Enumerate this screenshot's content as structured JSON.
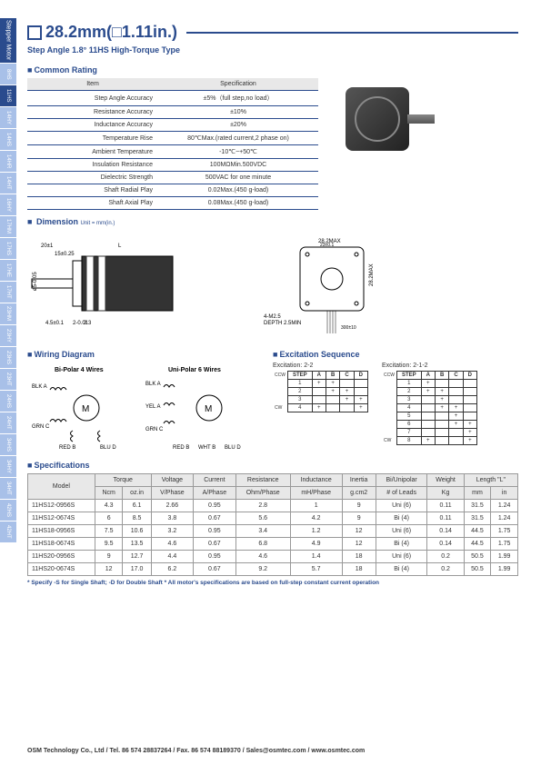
{
  "title": "28.2mm(□1.11in.)",
  "subtitle": "Step Angle 1.8°   11HS High-Torque Type",
  "side_tabs": {
    "top": "Stepper Motor",
    "items": [
      "8HS",
      "11HS",
      "14HY",
      "14HS",
      "14HR",
      "14HT",
      "16HY",
      "17HM",
      "17HS",
      "17HE",
      "17HT",
      "23HM",
      "23HY",
      "23HS",
      "23HT",
      "24HS",
      "24HT",
      "34HS",
      "34HY",
      "34HT",
      "42HS",
      "42HT"
    ]
  },
  "sections": {
    "common_rating": "Common Rating",
    "dimension": "Dimension",
    "dimension_unit": "Unit = mm(in.)",
    "wiring": "Wiring Diagram",
    "excitation": "Excitation Sequence",
    "specifications": "Specifications"
  },
  "rating": {
    "header_item": "Item",
    "header_spec": "Specification",
    "rows": [
      {
        "item": "Step Angle Accuracy",
        "spec": "±5%（full step,no load）"
      },
      {
        "item": "Resistance Accuracy",
        "spec": "±10%"
      },
      {
        "item": "Inductance Accuracy",
        "spec": "±20%"
      },
      {
        "item": "Temperature Rise",
        "spec": "80℃Max.(rated current,2 phase on)"
      },
      {
        "item": "Ambient Temperature",
        "spec": "-10℃~+50℃"
      },
      {
        "item": "Insulation Resistance",
        "spec": "100MΩMin.500VDC"
      },
      {
        "item": "Dielectric Strength",
        "spec": "500VAC for one minute"
      },
      {
        "item": "Shaft Radial Play",
        "spec": "0.02Max.(450 g-load)"
      },
      {
        "item": "Shaft Axial Play",
        "spec": "0.08Max.(450 g-load)"
      }
    ]
  },
  "dimensions": {
    "side": {
      "shaft_len": "20±1",
      "shaft_step": "15±0.25",
      "shaft_dia": "ø5-0.05",
      "body_len": "L",
      "mount_hole": "4.5±0.1",
      "flange": "2-0.013",
      "step": "2"
    },
    "front": {
      "width": "28.2MAX",
      "mount_pitch": "23±0.1",
      "height": "28.2MAX",
      "center_pitch": "23±0.1",
      "hole": "4-M2.5",
      "depth": "DEPTH 2.5MIN",
      "lead": "300±10"
    }
  },
  "wiring": {
    "bipolar_title": "Bi-Polar 4 Wires",
    "unipolar_title": "Uni-Polar 6 Wires",
    "labels": {
      "blk_a": "BLK A",
      "grn_c": "GRN C",
      "red_b": "RED B",
      "blu_d": "BLU D",
      "yel_a": "YEL A",
      "wht_b": "WHT B",
      "m": "M"
    }
  },
  "excitation": {
    "t1_title": "Excitation: 2-2",
    "t2_title": "Excitation: 2-1-2",
    "headers": [
      "STEP",
      "A",
      "B",
      "C",
      "D"
    ],
    "t1_rows": [
      [
        "1",
        "+",
        "+",
        "",
        ""
      ],
      [
        "2",
        "",
        "+",
        "+",
        ""
      ],
      [
        "3",
        "",
        "",
        "+",
        "+"
      ],
      [
        "4",
        "+",
        "",
        "",
        "+"
      ]
    ],
    "t2_rows": [
      [
        "1",
        "+",
        "",
        "",
        ""
      ],
      [
        "2",
        "+",
        "+",
        "",
        ""
      ],
      [
        "3",
        "",
        "+",
        "",
        ""
      ],
      [
        "4",
        "",
        "+",
        "+",
        ""
      ],
      [
        "5",
        "",
        "",
        "+",
        ""
      ],
      [
        "6",
        "",
        "",
        "+",
        "+"
      ],
      [
        "7",
        "",
        "",
        "",
        "+"
      ],
      [
        "8",
        "+",
        "",
        "",
        "+"
      ]
    ],
    "ccw": "CCW",
    "cw": "CW"
  },
  "specs": {
    "headers": {
      "model": "Model",
      "torque": "Torque",
      "voltage": "Voltage",
      "current": "Current",
      "resistance": "Resistance",
      "inductance": "Inductance",
      "inertia": "Inertia",
      "biuni": "Bi/Unipolar",
      "weight": "Weight",
      "length": "Length \"L\""
    },
    "subheaders": {
      "ncm": "Ncm",
      "ozin": "oz.in",
      "vphase": "V/Phase",
      "aphase": "A/Phase",
      "ohm": "Ohm/Phase",
      "mh": "mH/Phase",
      "gcm2": "g.cm2",
      "leads": "# of Leads",
      "kg": "Kg",
      "mm": "mm",
      "in": "in"
    },
    "rows": [
      {
        "model": "11HS12-0956S",
        "ncm": "4.3",
        "ozin": "6.1",
        "v": "2.66",
        "a": "0.95",
        "r": "2.8",
        "l": "1",
        "inertia": "9",
        "bi": "Uni (6)",
        "w": "0.11",
        "mm": "31.5",
        "in": "1.24"
      },
      {
        "model": "11HS12-0674S",
        "ncm": "6",
        "ozin": "8.5",
        "v": "3.8",
        "a": "0.67",
        "r": "5.6",
        "l": "4.2",
        "inertia": "9",
        "bi": "Bi (4)",
        "w": "0.11",
        "mm": "31.5",
        "in": "1.24"
      },
      {
        "model": "11HS18-0956S",
        "ncm": "7.5",
        "ozin": "10.6",
        "v": "3.2",
        "a": "0.95",
        "r": "3.4",
        "l": "1.2",
        "inertia": "12",
        "bi": "Uni (6)",
        "w": "0.14",
        "mm": "44.5",
        "in": "1.75"
      },
      {
        "model": "11HS18-0674S",
        "ncm": "9.5",
        "ozin": "13.5",
        "v": "4.6",
        "a": "0.67",
        "r": "6.8",
        "l": "4.9",
        "inertia": "12",
        "bi": "Bi (4)",
        "w": "0.14",
        "mm": "44.5",
        "in": "1.75"
      },
      {
        "model": "11HS20-0956S",
        "ncm": "9",
        "ozin": "12.7",
        "v": "4.4",
        "a": "0.95",
        "r": "4.6",
        "l": "1.4",
        "inertia": "18",
        "bi": "Uni (6)",
        "w": "0.2",
        "mm": "50.5",
        "in": "1.99"
      },
      {
        "model": "11HS20-0674S",
        "ncm": "12",
        "ozin": "17.0",
        "v": "6.2",
        "a": "0.67",
        "r": "9.2",
        "l": "5.7",
        "inertia": "18",
        "bi": "Bi (4)",
        "w": "0.2",
        "mm": "50.5",
        "in": "1.99"
      }
    ]
  },
  "footnote": "* Specify -S for Single Shaft; -D for Double Shaft    * All motor's specifications are based on full-step constant current operation",
  "footer": "OSM Technology Co., Ltd / Tel. 86 574 28837264 / Fax. 86 574 88189370 / Sales@osmtec.com / www.osmtec.com",
  "colors": {
    "primary": "#2a4b8d",
    "header_bg": "#e8e8e8",
    "side_inactive": "#a8c0e8"
  }
}
